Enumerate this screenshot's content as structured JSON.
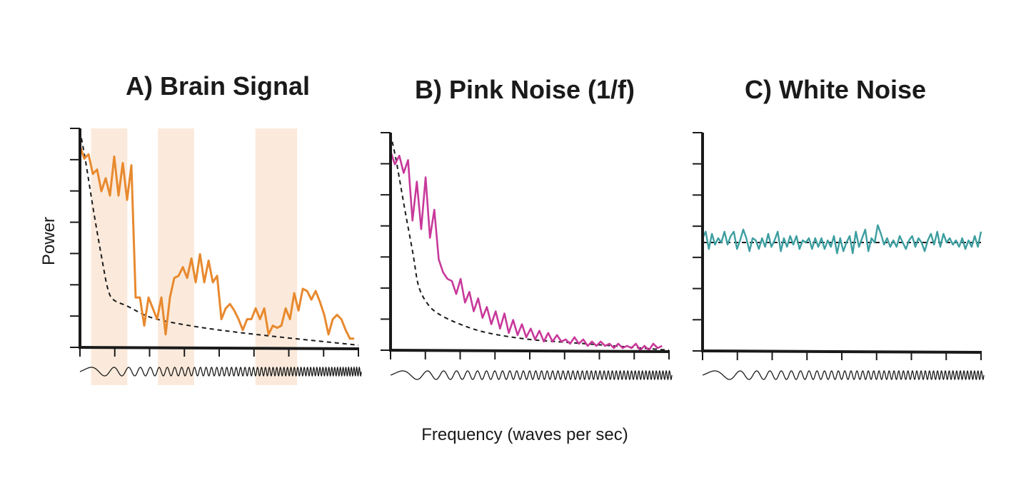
{
  "figure": {
    "xlabel": "Frequency (waves per sec)",
    "ylabel": "Power"
  },
  "panels": [
    {
      "id": "a",
      "title": "A) Brain Signal",
      "color": "#e8892e",
      "highlight_color": "#fbeadb",
      "highlight_bands": [
        [
          0.04,
          0.17
        ],
        [
          0.28,
          0.41
        ],
        [
          0.63,
          0.78
        ]
      ],
      "signal": [
        0.93,
        0.87,
        0.89,
        0.8,
        0.82,
        0.72,
        0.78,
        0.7,
        0.88,
        0.7,
        0.85,
        0.68,
        0.84,
        0.23,
        0.23,
        0.1,
        0.23,
        0.18,
        0.13,
        0.23,
        0.06,
        0.23,
        0.32,
        0.33,
        0.37,
        0.32,
        0.41,
        0.3,
        0.43,
        0.3,
        0.4,
        0.3,
        0.33,
        0.13,
        0.18,
        0.2,
        0.17,
        0.13,
        0.08,
        0.13,
        0.13,
        0.18,
        0.13,
        0.18,
        0.06,
        0.1,
        0.09,
        0.1,
        0.18,
        0.13,
        0.25,
        0.17,
        0.27,
        0.26,
        0.22,
        0.26,
        0.21,
        0.15,
        0.06,
        0.13,
        0.15,
        0.13,
        0.08,
        0.04,
        0.04
      ],
      "signal_x_end": 0.985,
      "trend": [
        [
          0.0,
          1.0
        ],
        [
          0.02,
          0.86
        ],
        [
          0.05,
          0.62
        ],
        [
          0.08,
          0.4
        ],
        [
          0.1,
          0.27
        ],
        [
          0.12,
          0.22
        ],
        [
          0.17,
          0.19
        ],
        [
          0.25,
          0.14
        ],
        [
          0.35,
          0.11
        ],
        [
          0.5,
          0.08
        ],
        [
          0.7,
          0.05
        ],
        [
          1.0,
          0.01
        ]
      ],
      "wave_cycles": 56
    },
    {
      "id": "b",
      "title": "B) Pink Noise (1/f)",
      "color": "#c8399a",
      "signal": [
        0.92,
        0.86,
        0.9,
        0.82,
        0.88,
        0.6,
        0.78,
        0.56,
        0.8,
        0.52,
        0.65,
        0.42,
        0.36,
        0.33,
        0.32,
        0.26,
        0.33,
        0.22,
        0.27,
        0.18,
        0.24,
        0.15,
        0.2,
        0.12,
        0.18,
        0.1,
        0.17,
        0.08,
        0.14,
        0.07,
        0.12,
        0.06,
        0.1,
        0.05,
        0.09,
        0.04,
        0.08,
        0.04,
        0.07,
        0.04,
        0.05,
        0.03,
        0.06,
        0.03,
        0.05,
        0.02,
        0.04,
        0.02,
        0.04,
        0.02,
        0.03,
        0.01,
        0.03,
        0.01,
        0.02,
        0.01,
        0.03,
        0.0,
        0.02,
        0.0,
        0.03,
        0.01,
        0.02
      ],
      "signal_x_end": 0.975,
      "trend": [
        [
          0.0,
          1.0
        ],
        [
          0.02,
          0.88
        ],
        [
          0.05,
          0.66
        ],
        [
          0.08,
          0.45
        ],
        [
          0.1,
          0.3
        ],
        [
          0.13,
          0.22
        ],
        [
          0.17,
          0.17
        ],
        [
          0.25,
          0.12
        ],
        [
          0.35,
          0.08
        ],
        [
          0.5,
          0.05
        ],
        [
          0.7,
          0.03
        ],
        [
          1.0,
          0.0
        ]
      ],
      "wave_cycles": 46
    },
    {
      "id": "c",
      "title": "C) White Noise",
      "color": "#3d9ea0",
      "signal": [
        0.52,
        0.55,
        0.47,
        0.54,
        0.49,
        0.52,
        0.5,
        0.55,
        0.49,
        0.53,
        0.55,
        0.47,
        0.51,
        0.56,
        0.52,
        0.46,
        0.52,
        0.51,
        0.47,
        0.52,
        0.48,
        0.54,
        0.48,
        0.51,
        0.55,
        0.46,
        0.52,
        0.48,
        0.53,
        0.49,
        0.53,
        0.47,
        0.51,
        0.5,
        0.52,
        0.47,
        0.52,
        0.48,
        0.52,
        0.47,
        0.51,
        0.48,
        0.53,
        0.45,
        0.52,
        0.46,
        0.5,
        0.53,
        0.45,
        0.55,
        0.48,
        0.52,
        0.56,
        0.46,
        0.52,
        0.5,
        0.58,
        0.54,
        0.49,
        0.52,
        0.48,
        0.51,
        0.48,
        0.53,
        0.5,
        0.47,
        0.51,
        0.53,
        0.48,
        0.52,
        0.5,
        0.46,
        0.51,
        0.54,
        0.49,
        0.55,
        0.48,
        0.54,
        0.5,
        0.52,
        0.49,
        0.51,
        0.48,
        0.52,
        0.47,
        0.51,
        0.48,
        0.53,
        0.48,
        0.55
      ],
      "signal_x_end": 1.0,
      "trend": [
        [
          0.0,
          0.5
        ],
        [
          1.0,
          0.5
        ]
      ],
      "wave_cycles": 44
    }
  ]
}
